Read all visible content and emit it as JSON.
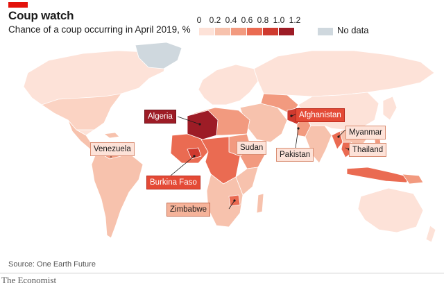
{
  "header": {
    "title": "Coup watch",
    "subtitle": "Chance of a coup occurring in April 2019, %"
  },
  "legend": {
    "ticks": [
      "0",
      "0.2",
      "0.4",
      "0.6",
      "0.8",
      "1.0",
      "1.2"
    ],
    "colors": [
      "#fde2d8",
      "#f7c2ad",
      "#f29a7f",
      "#ea6b52",
      "#cf3a2f",
      "#9d1c26"
    ],
    "no_data_label": "No data",
    "no_data_color": "#cfd8de"
  },
  "labels": {
    "algeria": "Algeria",
    "afghanistan": "Afghanistan",
    "myanmar": "Myanmar",
    "thailand": "Thailand",
    "pakistan": "Pakistan",
    "sudan": "Sudan",
    "venezuela": "Venezuela",
    "burkina_faso": "Burkina Faso",
    "zimbabwe": "Zimbabwe"
  },
  "footer": {
    "source": "Source: One Earth Future",
    "brand": "The Economist"
  }
}
